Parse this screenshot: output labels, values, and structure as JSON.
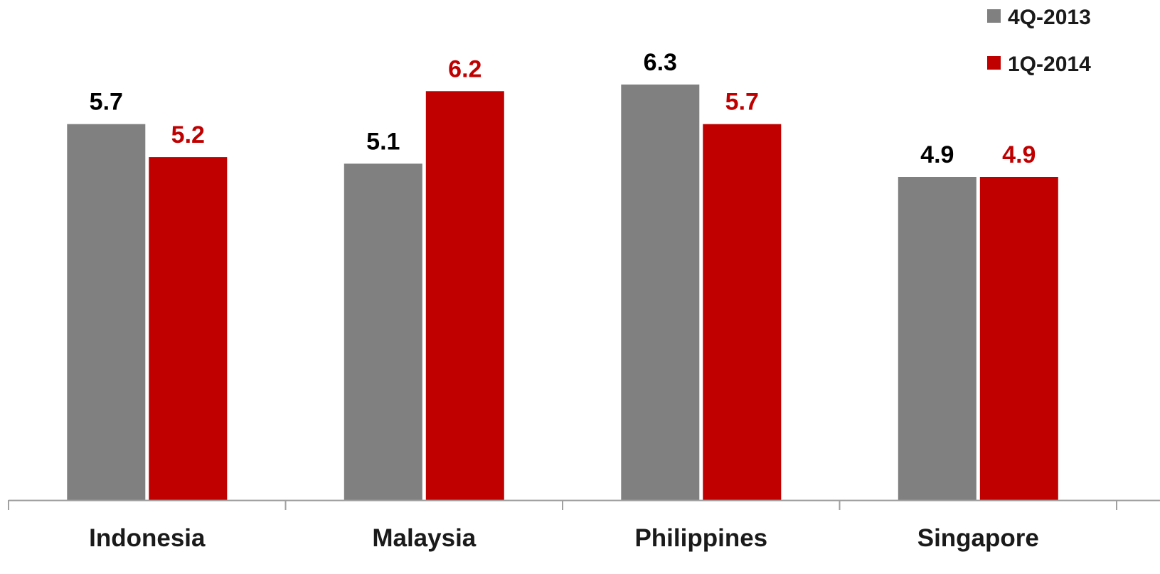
{
  "chart_data": {
    "type": "bar",
    "categories": [
      "Indonesia",
      "Malaysia",
      "Philippines",
      "Singapore"
    ],
    "series": [
      {
        "name": "4Q-2013",
        "values": [
          5.7,
          5.1,
          6.3,
          4.9
        ],
        "labels": [
          "5.7",
          "5.1",
          "6.3",
          "4.9"
        ],
        "color": "#808080",
        "label_color": "#000000"
      },
      {
        "name": "1Q-2014",
        "values": [
          5.2,
          6.2,
          5.7,
          4.9
        ],
        "labels": [
          "5.2",
          "6.2",
          "5.7",
          "4.9"
        ],
        "color": "#c00000",
        "label_color": "#c00000"
      }
    ],
    "title": "",
    "xlabel": "",
    "ylabel": "",
    "ylim": [
      0,
      7
    ],
    "grid": false,
    "legend": "top-right",
    "axis_color": "#a0a0a0"
  }
}
